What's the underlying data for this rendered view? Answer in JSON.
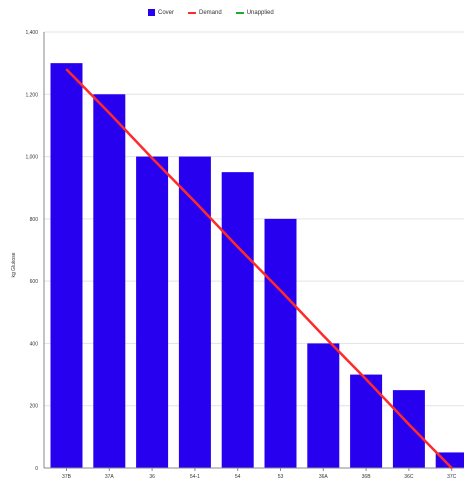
{
  "chart_data": {
    "type": "bar",
    "categories": [
      "37B",
      "37A",
      "36",
      "54-1",
      "54",
      "53",
      "36A",
      "36B",
      "36C",
      "37C"
    ],
    "series": [
      {
        "name": "Cover",
        "type": "bar",
        "values": [
          1300,
          1200,
          1000,
          1000,
          950,
          800,
          400,
          300,
          250,
          50
        ]
      },
      {
        "name": "Demand",
        "type": "line",
        "values": [
          1280,
          1140,
          995,
          855,
          710,
          570,
          425,
          285,
          140,
          0
        ]
      }
    ],
    "legend": [
      "Cover",
      "Demand",
      "Unapplied"
    ],
    "xlabel": "",
    "ylabel": "kg Glukose",
    "ylim": [
      0,
      1400
    ],
    "yticks": [
      0,
      200,
      400,
      600,
      800,
      1000,
      1200,
      1400
    ],
    "grid": true,
    "legend_position": "top-center",
    "colors": {
      "bar": "#2800f0",
      "demand": "#ff2a2a",
      "unapplied": "#22aa22"
    }
  }
}
